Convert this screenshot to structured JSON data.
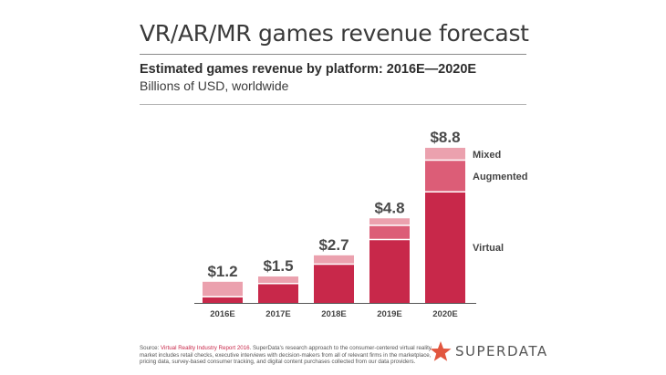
{
  "title": "VR/AR/MR games revenue forecast",
  "subtitle": "Estimated games revenue by platform: 2016E—2020E",
  "unit": "Billions of USD, worldwide",
  "colors": {
    "virtual": "#c8284a",
    "augmented": "#dc5d77",
    "mixed": "#eba1ae",
    "text": "#3a3a3a",
    "accent": "#e2563f"
  },
  "chart_data": {
    "type": "bar",
    "stacked": true,
    "categories": [
      "2016E",
      "2017E",
      "2018E",
      "2019E",
      "2020E"
    ],
    "series": [
      {
        "name": "Virtual",
        "values": [
          0.35,
          1.1,
          2.2,
          3.6,
          6.3
        ]
      },
      {
        "name": "Augmented",
        "values": [
          0.0,
          0.0,
          0.0,
          0.8,
          1.8
        ]
      },
      {
        "name": "Mixed",
        "values": [
          0.85,
          0.4,
          0.5,
          0.4,
          0.7
        ]
      }
    ],
    "totals": [
      "$1.2",
      "$1.5",
      "$2.7",
      "$4.8",
      "$8.8"
    ],
    "ylim": [
      0,
      8.8
    ],
    "grid": false,
    "legend": "labels to the right of the last bar"
  },
  "footnote": {
    "prefix": "Source: ",
    "source": "Virtual Reality Industry Report 2016",
    "body": ". SuperData's research approach to the consumer-centered virtual reality market includes retail checks, executive interviews with decision-makers from all of relevant firms in the marketplace, pricing data, survey-based consumer tracking, and digital content purchases collected from our data providers."
  },
  "logo": {
    "text": "SUPERDATA",
    "icon": "star-icon"
  }
}
